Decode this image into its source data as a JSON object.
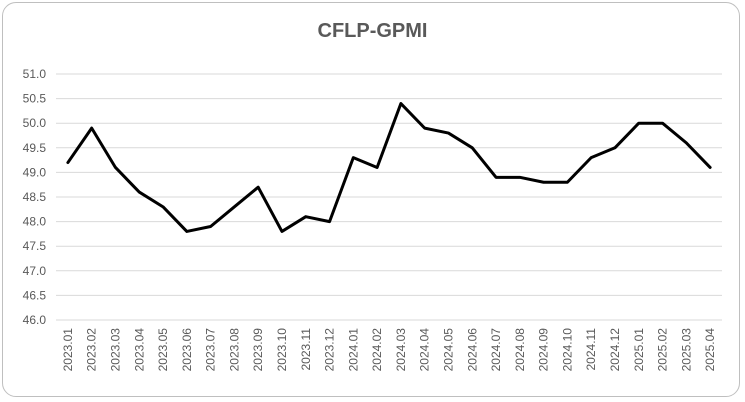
{
  "chart_data": {
    "type": "line",
    "title": "CFLP-GPMI",
    "xlabel": "",
    "ylabel": "",
    "ylim": [
      46.0,
      51.0
    ],
    "ytick_step": 0.5,
    "grid": true,
    "legend": "none",
    "categories": [
      "2023.01",
      "2023.02",
      "2023.03",
      "2023.04",
      "2023.05",
      "2023.06",
      "2023.07",
      "2023.08",
      "2023.09",
      "2023.10",
      "2023.11",
      "2023.12",
      "2024.01",
      "2024.02",
      "2024.03",
      "2024.04",
      "2024.05",
      "2024.06",
      "2024.07",
      "2024.08",
      "2024.09",
      "2024.10",
      "2024.11",
      "2024.12",
      "2025.01",
      "2025.02",
      "2025.03",
      "2025.04"
    ],
    "series": [
      {
        "values": [
          49.2,
          49.9,
          49.1,
          48.6,
          48.3,
          47.8,
          47.9,
          48.3,
          48.7,
          47.8,
          48.1,
          48.0,
          49.3,
          49.1,
          50.4,
          49.9,
          49.8,
          49.5,
          48.9,
          48.9,
          48.8,
          48.8,
          49.3,
          49.5,
          50.0,
          50.0,
          49.6,
          49.1
        ],
        "color": "#000000"
      }
    ],
    "gridline_color": "#d9d9d9"
  }
}
